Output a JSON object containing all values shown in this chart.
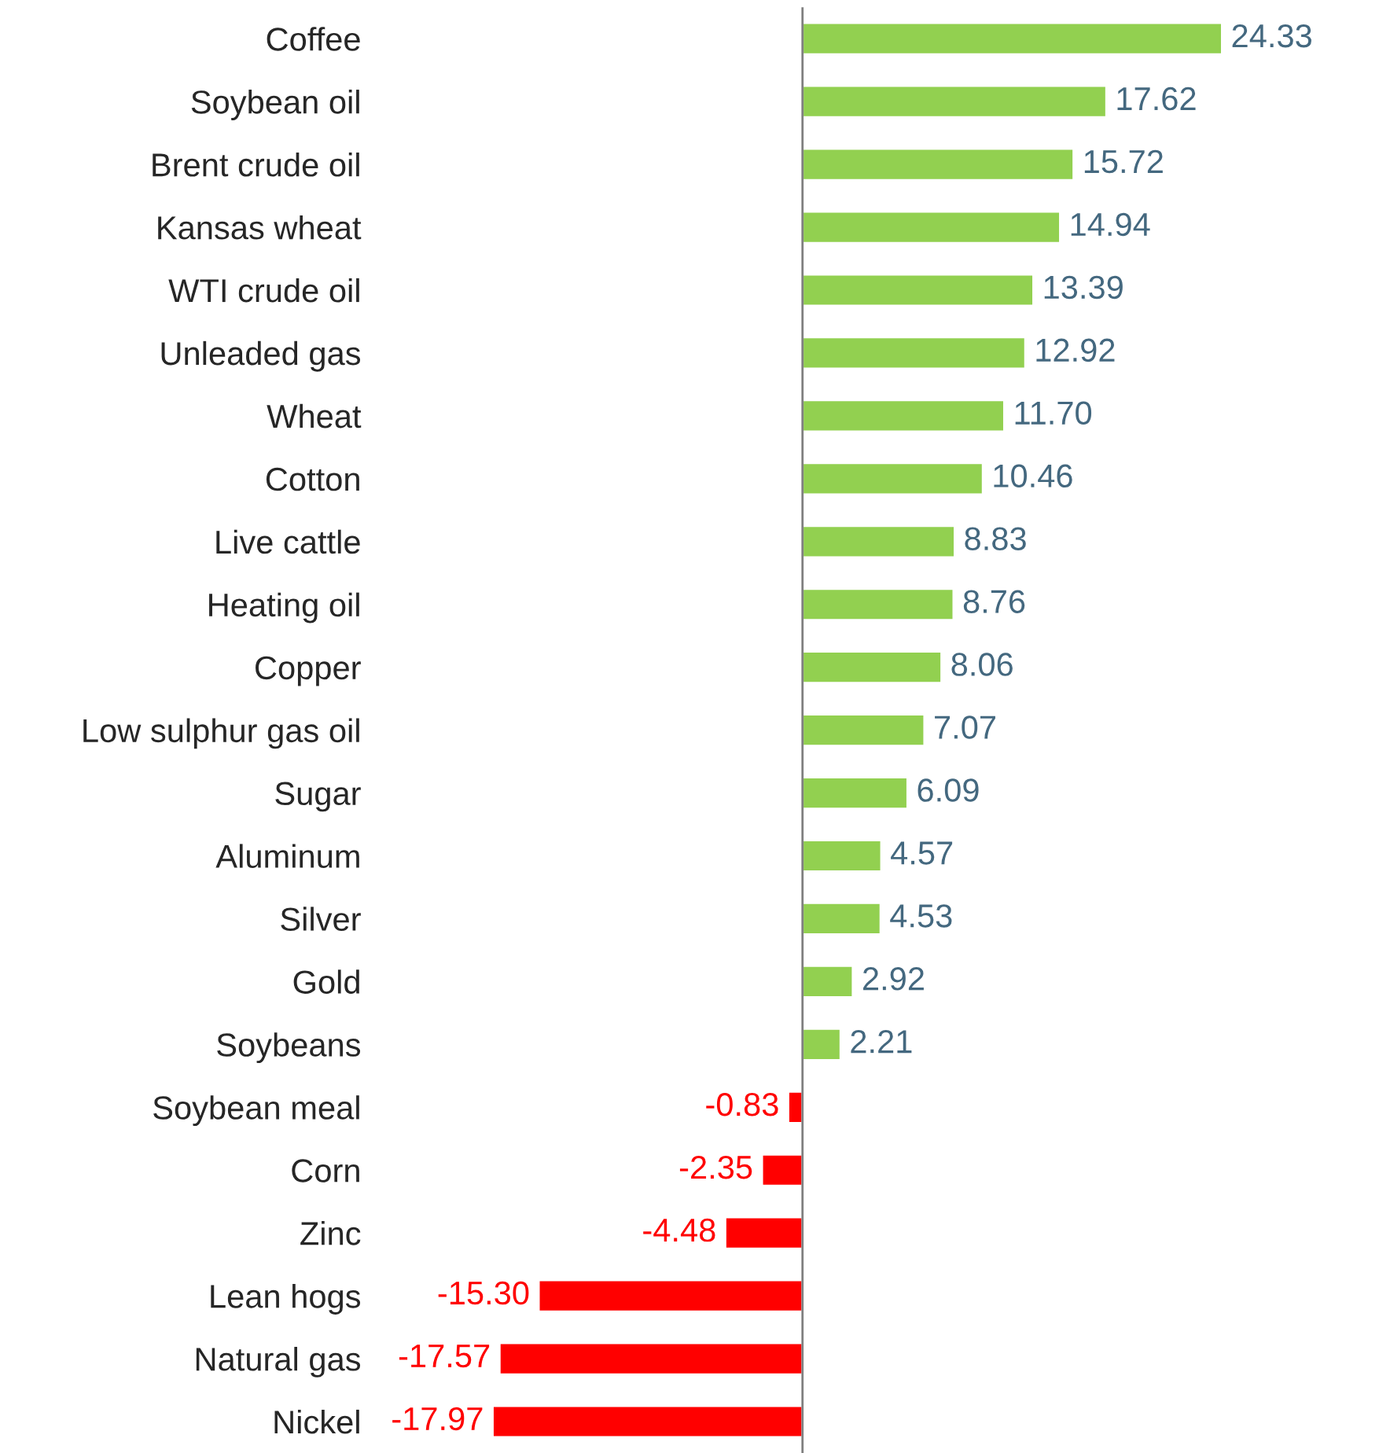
{
  "chart_data": {
    "type": "bar",
    "orientation": "horizontal",
    "data_labels": true,
    "categories": [
      "Coffee",
      "Soybean oil",
      "Brent crude oil",
      "Kansas wheat",
      "WTI crude oil",
      "Unleaded gas",
      "Wheat",
      "Cotton",
      "Live cattle",
      "Heating oil",
      "Copper",
      "Low sulphur gas oil",
      "Sugar",
      "Aluminum",
      "Silver",
      "Gold",
      "Soybeans",
      "Soybean meal",
      "Corn",
      "Zinc",
      "Lean hogs",
      "Natural gas",
      "Nickel"
    ],
    "values": [
      24.33,
      17.62,
      15.72,
      14.94,
      13.39,
      12.92,
      11.7,
      10.46,
      8.83,
      8.76,
      8.06,
      7.07,
      6.09,
      4.57,
      4.53,
      2.92,
      2.21,
      -0.83,
      -2.35,
      -4.48,
      -15.3,
      -17.57,
      -17.97
    ],
    "value_labels": [
      "24.33",
      "17.62",
      "15.72",
      "14.94",
      "13.39",
      "12.92",
      "11.70",
      "10.46",
      "8.83",
      "8.76",
      "8.06",
      "7.07",
      "6.09",
      "4.57",
      "4.53",
      "2.92",
      "2.21",
      "-0.83",
      "-2.35",
      "-4.48",
      "-15.30",
      "-17.57",
      "-17.97"
    ],
    "colors": [
      "#92d050",
      "#92d050",
      "#92d050",
      "#92d050",
      "#92d050",
      "#92d050",
      "#92d050",
      "#92d050",
      "#92d050",
      "#92d050",
      "#92d050",
      "#92d050",
      "#92d050",
      "#92d050",
      "#92d050",
      "#92d050",
      "#92d050",
      "#ff0000",
      "#ff0000",
      "#ff0000",
      "#ff0000",
      "#ff0000",
      "#ff0000"
    ],
    "grid": false,
    "legend": false
  }
}
